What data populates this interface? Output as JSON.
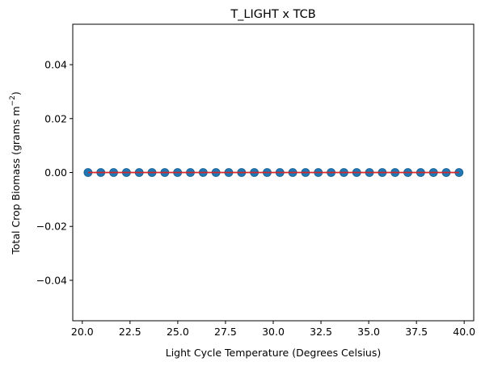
{
  "chart_data": {
    "type": "scatter",
    "title": "T_LIGHT x TCB",
    "xlabel": "Light Cycle Temperature (Degrees Celsius)",
    "ylabel_main": "Total Crop Biomass (grams m",
    "ylabel_sup": "−2",
    "ylabel_end": ")",
    "xlim": [
      19.5,
      40.5
    ],
    "ylim": [
      -0.055,
      0.055
    ],
    "x_ticks": [
      20.0,
      22.5,
      25.0,
      27.5,
      30.0,
      32.5,
      35.0,
      37.5,
      40.0
    ],
    "x_tick_labels": [
      "20.0",
      "22.5",
      "25.0",
      "27.5",
      "30.0",
      "32.5",
      "35.0",
      "37.5",
      "40.0"
    ],
    "y_ticks": [
      -0.04,
      -0.02,
      0.0,
      0.02,
      0.04
    ],
    "y_tick_labels": [
      "−0.04",
      "−0.02",
      "0.00",
      "0.02",
      "0.04"
    ],
    "grid": false,
    "point_color": "#1f77b4",
    "line_color": "#d62728",
    "points": {
      "x": [
        20.3,
        20.97,
        21.64,
        22.31,
        22.98,
        23.65,
        24.32,
        24.99,
        25.66,
        26.33,
        27.0,
        27.67,
        28.34,
        29.01,
        29.68,
        30.35,
        31.02,
        31.69,
        32.36,
        33.03,
        33.7,
        34.37,
        35.04,
        35.71,
        36.38,
        37.05,
        37.72,
        38.39,
        39.06,
        39.73
      ],
      "y": [
        0,
        0,
        0,
        0,
        0,
        0,
        0,
        0,
        0,
        0,
        0,
        0,
        0,
        0,
        0,
        0,
        0,
        0,
        0,
        0,
        0,
        0,
        0,
        0,
        0,
        0,
        0,
        0,
        0,
        0
      ]
    },
    "fit_line": {
      "x": [
        20.3,
        39.73
      ],
      "y": [
        0,
        0
      ]
    }
  }
}
